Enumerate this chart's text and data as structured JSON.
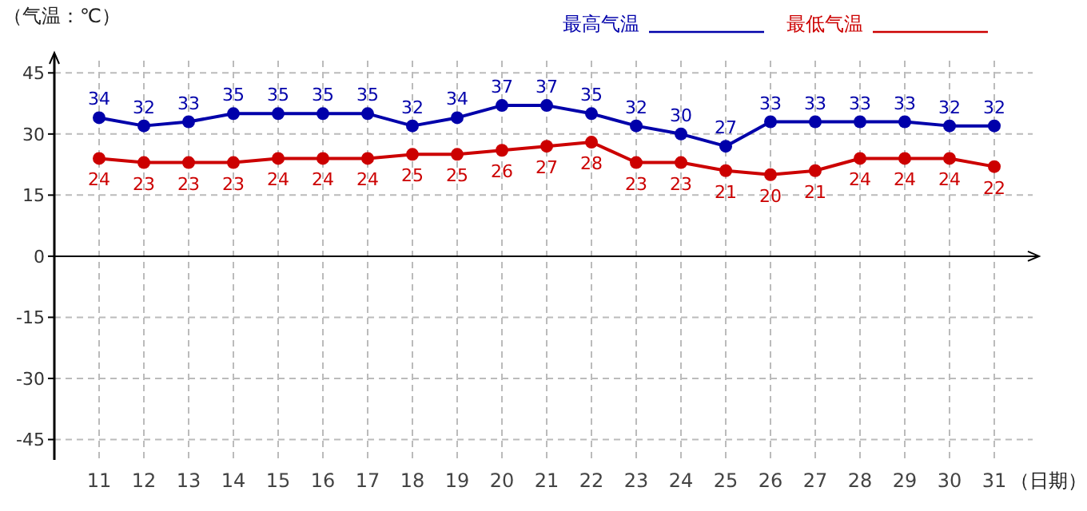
{
  "chart_data": {
    "type": "line",
    "xlabel": "（日期）",
    "ylabel": "（气温：℃）",
    "categories": [
      "11",
      "12",
      "13",
      "14",
      "15",
      "16",
      "17",
      "18",
      "19",
      "20",
      "21",
      "22",
      "23",
      "24",
      "25",
      "26",
      "27",
      "28",
      "29",
      "30",
      "31"
    ],
    "series": [
      {
        "name": "最高气温",
        "color": "#0000aa",
        "values": [
          34,
          32,
          33,
          35,
          35,
          35,
          35,
          32,
          34,
          37,
          37,
          35,
          32,
          30,
          27,
          33,
          33,
          33,
          33,
          32,
          32
        ]
      },
      {
        "name": "最低气温",
        "color": "#cc0000",
        "values": [
          24,
          23,
          23,
          23,
          24,
          24,
          24,
          25,
          25,
          26,
          27,
          28,
          23,
          23,
          21,
          20,
          21,
          24,
          24,
          24,
          22
        ]
      }
    ],
    "ylim": [
      -50,
      48
    ],
    "yticks": [
      -45,
      -30,
      -15,
      0,
      15,
      30,
      45
    ],
    "grid": true,
    "legend": "top",
    "marker": "circle",
    "line_style": "solid",
    "data_labels": true
  }
}
